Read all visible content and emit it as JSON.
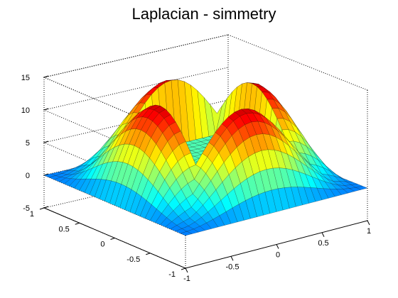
{
  "chart_data": {
    "type": "surface",
    "title": "Laplacian - simmetry",
    "xlabel": "",
    "ylabel": "",
    "zlabel": "",
    "grid": true,
    "box": true,
    "colormap": "jet",
    "x_range": [
      -1,
      1
    ],
    "y_range": [
      -1,
      1
    ],
    "z_range": [
      -5,
      15
    ],
    "x_ticks": [
      -1,
      -0.5,
      0,
      0.5,
      1
    ],
    "y_ticks": [
      -1,
      -0.5,
      0,
      0.5,
      1
    ],
    "z_ticks": [
      -5,
      0,
      5,
      10,
      15
    ],
    "x_tick_labels": [
      "-1",
      "-0.5",
      "0",
      "0.5",
      "1"
    ],
    "y_tick_labels": [
      "-1",
      "-0.5",
      "0",
      "0.5",
      "1"
    ],
    "z_tick_labels": [
      "-5",
      "0",
      "5",
      "10",
      "15"
    ],
    "surface_features": {
      "arch_peak_value": 13.5,
      "center_plateau_value": 4,
      "edge_level_value": 0,
      "corner_spike_value": 11
    }
  }
}
